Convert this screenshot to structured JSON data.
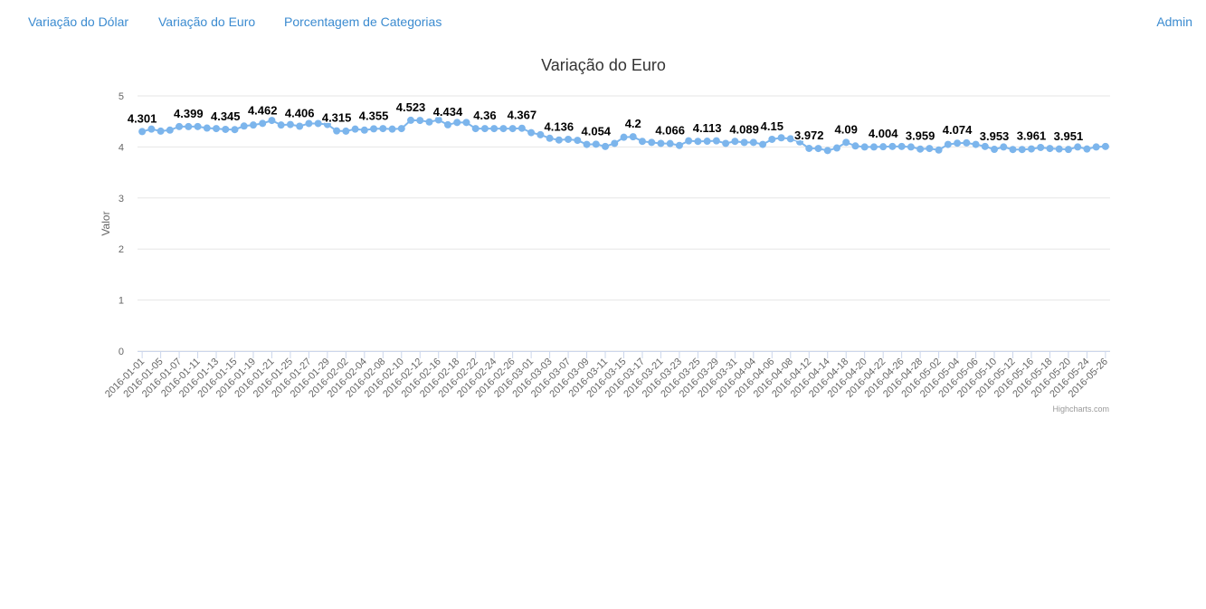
{
  "nav": {
    "links": [
      "Variação do Dólar",
      "Variação do Euro",
      "Porcentagem de Categorias"
    ],
    "admin": "Admin"
  },
  "chart_data": {
    "type": "line",
    "title": "Variação do Euro",
    "y_label": "Valor",
    "credits": "Highcharts.com",
    "ylim": [
      0,
      5
    ],
    "yticks": [
      0,
      1,
      2,
      3,
      4,
      5
    ],
    "grid": true,
    "categories": [
      "2016-01-01",
      null,
      "2016-01-05",
      null,
      "2016-01-07",
      null,
      "2016-01-11",
      null,
      "2016-01-13",
      null,
      "2016-01-15",
      null,
      "2016-01-19",
      null,
      "2016-01-21",
      null,
      "2016-01-25",
      null,
      "2016-01-27",
      null,
      "2016-01-29",
      null,
      "2016-02-02",
      null,
      "2016-02-04",
      null,
      "2016-02-08",
      null,
      "2016-02-10",
      null,
      "2016-02-12",
      null,
      "2016-02-16",
      null,
      "2016-02-18",
      null,
      "2016-02-22",
      null,
      "2016-02-24",
      null,
      "2016-02-26",
      null,
      "2016-03-01",
      null,
      "2016-03-03",
      null,
      "2016-03-07",
      null,
      "2016-03-09",
      null,
      "2016-03-11",
      null,
      "2016-03-15",
      null,
      "2016-03-17",
      null,
      "2016-03-21",
      null,
      "2016-03-23",
      null,
      "2016-03-25",
      null,
      "2016-03-29",
      null,
      "2016-03-31",
      null,
      "2016-04-04",
      null,
      "2016-04-06",
      null,
      "2016-04-08",
      null,
      "2016-04-12",
      null,
      "2016-04-14",
      null,
      "2016-04-18",
      null,
      "2016-04-20",
      null,
      "2016-04-22",
      null,
      "2016-04-26",
      null,
      "2016-04-28",
      null,
      "2016-05-02",
      null,
      "2016-05-04",
      null,
      "2016-05-06",
      null,
      "2016-05-10",
      null,
      "2016-05-12",
      null,
      "2016-05-16",
      null,
      "2016-05-18",
      null,
      "2016-05-20",
      null,
      "2016-05-24",
      null,
      "2016-05-26"
    ],
    "series": [
      {
        "color": "#7cb5ec",
        "values": [
          4.301,
          4.35,
          4.31,
          4.33,
          4.4,
          4.399,
          4.4,
          4.37,
          4.36,
          4.345,
          4.34,
          4.41,
          4.43,
          4.462,
          4.52,
          4.43,
          4.44,
          4.406,
          4.46,
          4.46,
          4.44,
          4.315,
          4.31,
          4.35,
          4.33,
          4.355,
          4.36,
          4.35,
          4.36,
          4.523,
          4.52,
          4.49,
          4.53,
          4.434,
          4.48,
          4.48,
          4.36,
          4.36,
          4.36,
          4.36,
          4.36,
          4.367,
          4.28,
          4.24,
          4.17,
          4.136,
          4.15,
          4.13,
          4.05,
          4.054,
          4.01,
          4.07,
          4.19,
          4.2,
          4.11,
          4.09,
          4.07,
          4.066,
          4.03,
          4.12,
          4.11,
          4.113,
          4.12,
          4.07,
          4.11,
          4.089,
          4.09,
          4.05,
          4.15,
          4.18,
          4.16,
          4.1,
          3.972,
          3.97,
          3.93,
          3.98,
          4.09,
          4.02,
          4.0,
          4.0,
          4.004,
          4.01,
          4.01,
          4.0,
          3.959,
          3.97,
          3.94,
          4.05,
          4.074,
          4.08,
          4.05,
          4.01,
          3.953,
          4.0,
          3.95,
          3.95,
          3.961,
          3.99,
          3.97,
          3.96,
          3.951,
          4.0,
          3.96,
          4.0,
          4.01
        ],
        "value_labels": [
          "4.301",
          null,
          null,
          null,
          null,
          "4.399",
          null,
          null,
          null,
          "4.345",
          null,
          null,
          null,
          "4.462",
          null,
          null,
          null,
          "4.406",
          null,
          null,
          null,
          "4.315",
          null,
          null,
          null,
          "4.355",
          null,
          null,
          null,
          "4.523",
          null,
          null,
          null,
          "4.434",
          null,
          null,
          null,
          "4.36",
          null,
          null,
          null,
          "4.367",
          null,
          null,
          null,
          "4.136",
          null,
          null,
          null,
          "4.054",
          null,
          null,
          null,
          "4.2",
          null,
          null,
          null,
          "4.066",
          null,
          null,
          null,
          "4.113",
          null,
          null,
          null,
          "4.089",
          null,
          null,
          "4.15",
          null,
          null,
          null,
          "3.972",
          null,
          null,
          null,
          "4.09",
          null,
          null,
          null,
          "4.004",
          null,
          null,
          null,
          "3.959",
          null,
          null,
          null,
          "4.074",
          null,
          null,
          null,
          "3.953",
          null,
          null,
          null,
          "3.961",
          null,
          null,
          null,
          "3.951",
          null,
          null,
          null,
          null
        ]
      }
    ]
  }
}
